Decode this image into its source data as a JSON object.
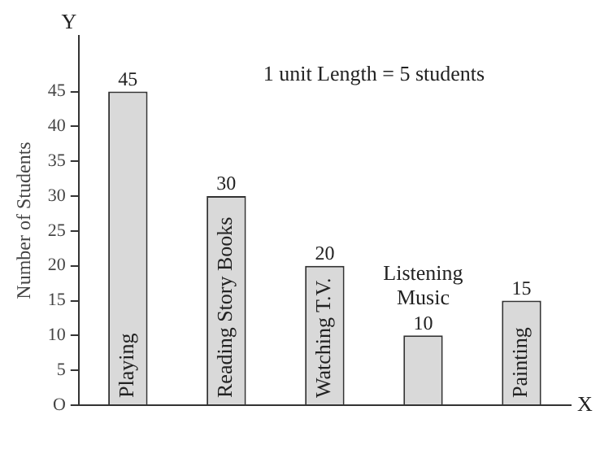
{
  "chart_data": {
    "type": "bar",
    "xlabel": "X",
    "ylabel": "Number of Students",
    "annotations": [
      "Y",
      "1 unit Length = 5 students"
    ],
    "categories": [
      "Playing",
      "Reading Story Books",
      "Watching T.V.",
      "Listening Music",
      "Painting"
    ],
    "values": [
      45,
      30,
      20,
      10,
      15
    ],
    "color": "#d9d9d9",
    "ylim": [
      0,
      53
    ],
    "yticks": [
      {
        "value": 0,
        "label": "O"
      },
      5,
      10,
      15,
      20,
      25,
      30,
      35,
      40,
      45
    ],
    "data_labels": true,
    "grid": false,
    "legend": false
  }
}
